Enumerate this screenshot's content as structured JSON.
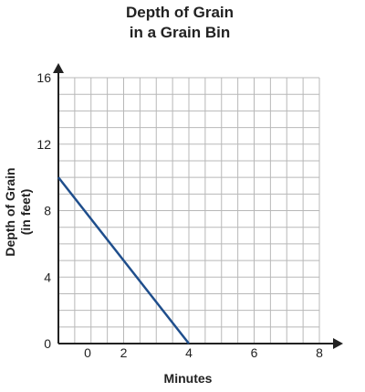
{
  "chart_data": {
    "type": "line",
    "title": [
      "Depth of Grain",
      "in a Grain Bin"
    ],
    "xlabel": "Minutes",
    "ylabel": [
      "Depth of Grain",
      "(in feet)"
    ],
    "xlim": [
      0,
      8
    ],
    "ylim": [
      0,
      16
    ],
    "x_ticks": [
      0,
      2,
      4,
      6,
      8
    ],
    "y_ticks": [
      0,
      4,
      8,
      12,
      16
    ],
    "grid": true,
    "series": [
      {
        "x": [
          0,
          4
        ],
        "y": [
          10,
          0
        ],
        "color": "#1f4e8c"
      }
    ]
  }
}
